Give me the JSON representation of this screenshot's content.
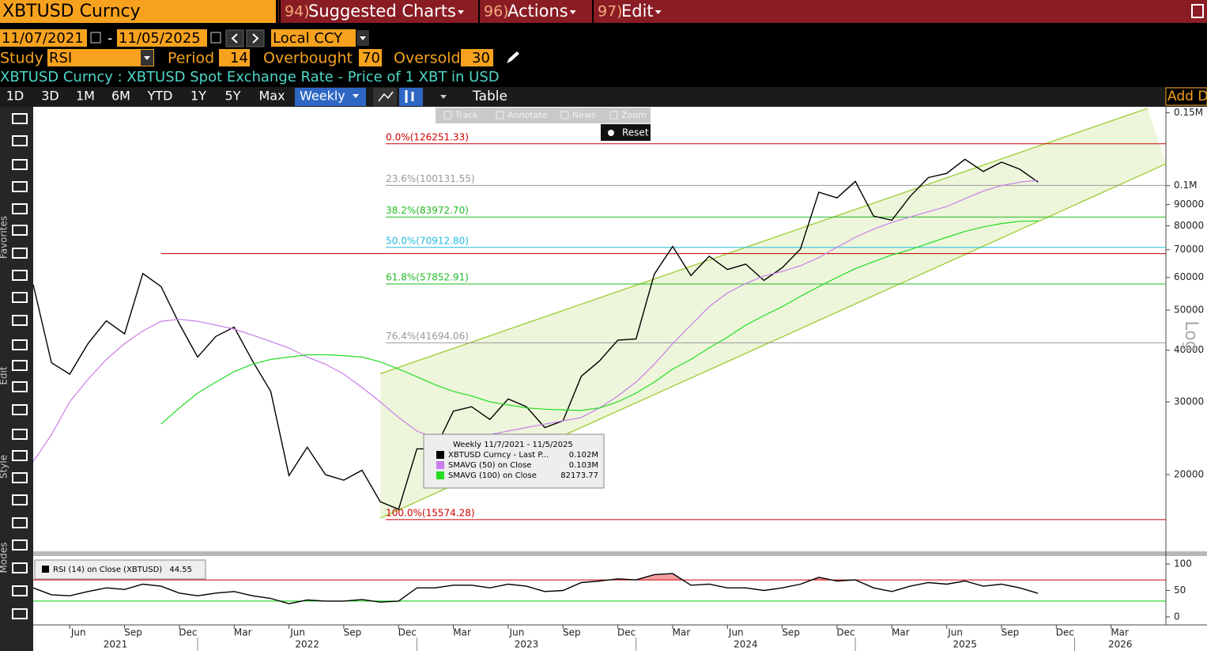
{
  "ui": {
    "security": "XBTUSD Curncy",
    "menu": [
      {
        "num": "94)",
        "label": "Suggested Charts"
      },
      {
        "num": "96)",
        "label": "Actions"
      },
      {
        "num": "97)",
        "label": "Edit"
      }
    ],
    "start_date": "11/07/2021",
    "end_date": "11/05/2025",
    "currency": "Local CCY",
    "study": {
      "label": "Study",
      "value": "RSI",
      "period_label": "Period",
      "period": 14,
      "overbought_label": "Overbought",
      "overbought": 70,
      "oversold_label": "Oversold",
      "oversold": 30
    },
    "description": "XBTUSD Curncy : XBTUSD Spot Exchange Rate - Price of 1 XBT in USD",
    "ranges": [
      "1D",
      "3D",
      "1M",
      "6M",
      "YTD",
      "1Y",
      "5Y",
      "Max"
    ],
    "frequency": "Weekly",
    "table": "Table",
    "add": "Add D",
    "chart_tools": [
      "Track",
      "Annotate",
      "News",
      "Zoom"
    ],
    "reset": "Reset",
    "sidebar_labels": [
      "Favorites",
      "Edit",
      "Style",
      "Modes"
    ],
    "tooltip": {
      "title": "Weekly 11/7/2021 - 11/5/2025",
      "rows": [
        {
          "name": "XBTUSD Curncy - Last P...",
          "value": "0.102M",
          "color": "#000000"
        },
        {
          "name": "SMAVG (50)  on Close",
          "value": "0.103M",
          "color": "#c77dea"
        },
        {
          "name": "SMAVG (100)  on Close",
          "value": 82173.77,
          "color": "#22dd22"
        }
      ]
    },
    "rsi_legend": {
      "name": "RSI (14)  on Close (XBTUSD)",
      "value": 44.55
    }
  },
  "chart_data": [
    {
      "type": "line",
      "log_scale": true,
      "scale_label": "Log",
      "x": [
        "2021-04",
        "2021-05",
        "2021-06",
        "2021-07",
        "2021-08",
        "2021-09",
        "2021-10",
        "2021-11",
        "2021-12",
        "2022-01",
        "2022-02",
        "2022-03",
        "2022-04",
        "2022-05",
        "2022-06",
        "2022-07",
        "2022-08",
        "2022-09",
        "2022-10",
        "2022-11",
        "2022-12",
        "2023-01",
        "2023-02",
        "2023-03",
        "2023-04",
        "2023-05",
        "2023-06",
        "2023-07",
        "2023-08",
        "2023-09",
        "2023-10",
        "2023-11",
        "2023-12",
        "2024-01",
        "2024-02",
        "2024-03",
        "2024-04",
        "2024-05",
        "2024-06",
        "2024-07",
        "2024-08",
        "2024-09",
        "2024-10",
        "2024-11",
        "2024-12",
        "2025-01",
        "2025-02",
        "2025-03",
        "2025-04",
        "2025-05",
        "2025-06",
        "2025-07",
        "2025-08",
        "2025-09",
        "2025-10",
        "2025-11"
      ],
      "xlim": [
        "2021-04",
        "2026-06"
      ],
      "ylim": [
        13050,
        153800
      ],
      "yticks": [
        20000,
        30000,
        40000,
        50000,
        60000,
        70000,
        80000,
        90000,
        {
          "value": 100000,
          "label": "0.1M"
        },
        {
          "value": 150000,
          "label": "0.15M"
        }
      ],
      "series": [
        {
          "color": "#000000",
          "values": [
            57700,
            37300,
            35000,
            41500,
            47100,
            43800,
            61300,
            57000,
            46300,
            38500,
            43200,
            45500,
            37700,
            31800,
            19900,
            23300,
            20000,
            19400,
            20500,
            17200,
            16500,
            23100,
            23100,
            28500,
            29200,
            27200,
            30500,
            29200,
            26000,
            27000,
            34600,
            37700,
            42300,
            42600,
            61100,
            71300,
            60600,
            67500,
            62700,
            64600,
            59000,
            63300,
            70300,
            96400,
            93400,
            102400,
            84400,
            82500,
            94200,
            104600,
            107100,
            115800,
            108200,
            114000,
            109600,
            102000
          ]
        },
        {
          "color": "#c77dea",
          "values": [
            21500,
            25000,
            30000,
            34000,
            38000,
            41500,
            44500,
            47000,
            47500,
            47000,
            46000,
            45000,
            43500,
            42000,
            40500,
            38500,
            37000,
            35000,
            32500,
            30000,
            27500,
            25500,
            24500,
            24000,
            24500,
            25000,
            25500,
            26000,
            26500,
            27000,
            27500,
            29000,
            31000,
            33500,
            37000,
            41500,
            46000,
            51000,
            55000,
            58000,
            60500,
            62000,
            64000,
            67000,
            71000,
            75000,
            78500,
            81500,
            84000,
            86500,
            89000,
            93000,
            97000,
            100000,
            102000,
            103000
          ]
        },
        {
          "color": "#22dd22",
          "values": [
            null,
            null,
            null,
            null,
            null,
            null,
            null,
            26500,
            29000,
            31500,
            33500,
            35500,
            37000,
            38000,
            38500,
            39000,
            39000,
            38800,
            38500,
            37500,
            36000,
            34500,
            33000,
            31800,
            31000,
            30000,
            29500,
            29000,
            28800,
            28700,
            28600,
            29000,
            30000,
            31500,
            33500,
            36000,
            38000,
            40500,
            43000,
            46000,
            48500,
            51000,
            54000,
            57000,
            60000,
            63000,
            65500,
            68000,
            70000,
            72500,
            75000,
            77500,
            79500,
            81000,
            82000,
            82173.77
          ]
        }
      ],
      "trendlines": [
        {
          "x": [
            "2022-11",
            "2026-05"
          ],
          "values": [
            35100,
            153800
          ]
        },
        {
          "x": [
            "2022-11",
            "2026-06"
          ],
          "values": [
            15700,
            112900
          ]
        }
      ],
      "channel_color": "#9acd32",
      "hlines": [
        {
          "x": "2021-11",
          "value": 68500,
          "color": "#c00000"
        }
      ],
      "fib_levels": {
        "values": [
          126251.33,
          100131.55,
          83972.7,
          70912.8,
          57852.91,
          41694.06,
          15574.28
        ],
        "value_labels": [
          "0.0%(126251.33)",
          "23.6%(100131.55)",
          "38.2%(83972.70)",
          "50.0%(70912.80)",
          "61.8%(57852.91)",
          "76.4%(41694.06)",
          "100.0%(15574.28)"
        ],
        "colors": [
          "#cc0000",
          "#999999",
          "#22bb22",
          "#22bbdd",
          "#22bb22",
          "#999999",
          "#cc0000"
        ]
      }
    },
    {
      "type": "line",
      "x": [
        "2021-04",
        "2021-05",
        "2021-06",
        "2021-07",
        "2021-08",
        "2021-09",
        "2021-10",
        "2021-11",
        "2021-12",
        "2022-01",
        "2022-02",
        "2022-03",
        "2022-04",
        "2022-05",
        "2022-06",
        "2022-07",
        "2022-08",
        "2022-09",
        "2022-10",
        "2022-11",
        "2022-12",
        "2023-01",
        "2023-02",
        "2023-03",
        "2023-04",
        "2023-05",
        "2023-06",
        "2023-07",
        "2023-08",
        "2023-09",
        "2023-10",
        "2023-11",
        "2023-12",
        "2024-01",
        "2024-02",
        "2024-03",
        "2024-04",
        "2024-05",
        "2024-06",
        "2024-07",
        "2024-08",
        "2024-09",
        "2024-10",
        "2024-11",
        "2024-12",
        "2025-01",
        "2025-02",
        "2025-03",
        "2025-04",
        "2025-05",
        "2025-06",
        "2025-07",
        "2025-08",
        "2025-09",
        "2025-10",
        "2025-11"
      ],
      "xlim": [
        "2021-04",
        "2026-06"
      ],
      "ylim": [
        -15,
        115
      ],
      "yticks": [
        0,
        50,
        100
      ],
      "series": [
        {
          "color": "#000000",
          "values": [
            55,
            42,
            40,
            48,
            55,
            52,
            62,
            58,
            45,
            40,
            45,
            48,
            40,
            35,
            25,
            32,
            30,
            30,
            33,
            28,
            30,
            55,
            55,
            60,
            60,
            55,
            62,
            58,
            48,
            50,
            65,
            68,
            72,
            70,
            80,
            82,
            60,
            62,
            55,
            55,
            50,
            55,
            62,
            75,
            68,
            70,
            55,
            48,
            58,
            65,
            62,
            68,
            58,
            62,
            55,
            44.55
          ]
        }
      ],
      "overbought_color": "#cc0000",
      "oversold_color": "#00cc00",
      "overbought_fill": "#f4a0a0",
      "xticks": [
        {
          "value": "2021-06",
          "label": "Jun"
        },
        {
          "value": "2021-09",
          "label": "Sep"
        },
        {
          "value": "2021-12",
          "label": "Dec"
        },
        {
          "value": "2022-03",
          "label": "Mar"
        },
        {
          "value": "2022-06",
          "label": "Jun"
        },
        {
          "value": "2022-09",
          "label": "Sep"
        },
        {
          "value": "2022-12",
          "label": "Dec"
        },
        {
          "value": "2023-03",
          "label": "Mar"
        },
        {
          "value": "2023-06",
          "label": "Jun"
        },
        {
          "value": "2023-09",
          "label": "Sep"
        },
        {
          "value": "2023-12",
          "label": "Dec"
        },
        {
          "value": "2024-03",
          "label": "Mar"
        },
        {
          "value": "2024-06",
          "label": "Jun"
        },
        {
          "value": "2024-09",
          "label": "Sep"
        },
        {
          "value": "2024-12",
          "label": "Dec"
        },
        {
          "value": "2025-03",
          "label": "Mar"
        },
        {
          "value": "2025-06",
          "label": "Jun"
        },
        {
          "value": "2025-09",
          "label": "Sep"
        },
        {
          "value": "2025-12",
          "label": "Dec"
        },
        {
          "value": "2026-03",
          "label": "Mar"
        }
      ],
      "x_year_labels": [
        "2021",
        "2022",
        "2023",
        "2024",
        "2025",
        "2026"
      ]
    }
  ]
}
